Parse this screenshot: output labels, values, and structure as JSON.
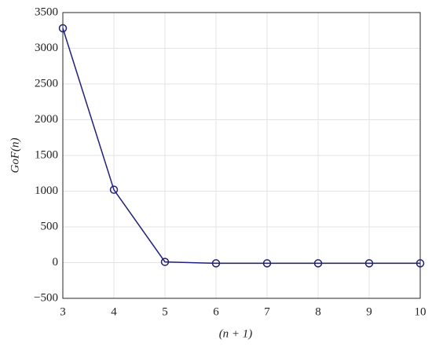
{
  "chart_data": {
    "type": "line",
    "x": [
      3,
      4,
      5,
      6,
      7,
      8,
      9,
      10
    ],
    "values": [
      3280,
      1020,
      10,
      -10,
      -10,
      -10,
      -10,
      -10
    ],
    "color": "#20207f",
    "xlabel": "(n + 1)",
    "ylabel": "GoF(n)",
    "xlim": [
      3,
      10
    ],
    "xticks": [
      3,
      4,
      5,
      6,
      7,
      8,
      9,
      10
    ],
    "ylim": [
      -500,
      3500
    ],
    "yticks": [
      {
        "value": -500,
        "label": "−500"
      },
      0,
      500,
      1000,
      1500,
      2000,
      2500,
      3000,
      3500
    ],
    "grid": true
  }
}
